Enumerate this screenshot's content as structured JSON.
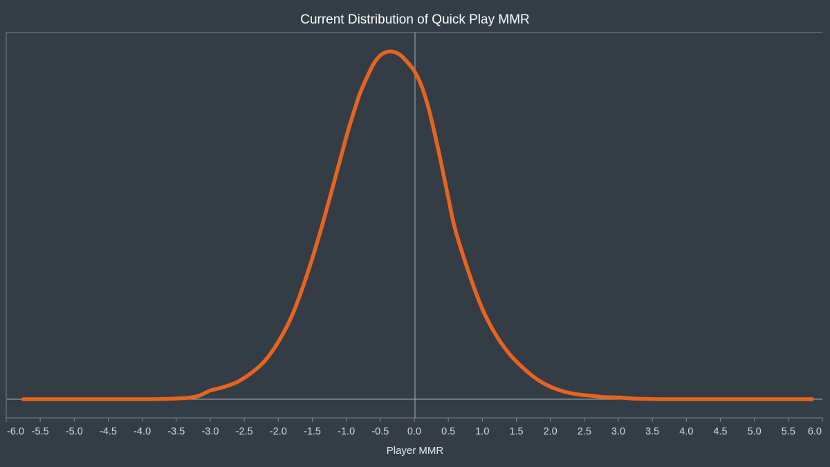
{
  "chart_data": {
    "type": "line",
    "title": "Current Distribution of Quick Play MMR",
    "xlabel": "Player MMR",
    "ylabel": "",
    "xlim": [
      -6.0,
      6.0
    ],
    "ylim": [
      0.0,
      1.0
    ],
    "y_axis_labels_shown": false,
    "x_ticks": [
      "-6.0",
      "-5.5",
      "-5.0",
      "-4.5",
      "-4.0",
      "-3.5",
      "-3.0",
      "-2.5",
      "-2.0",
      "-1.5",
      "-1.0",
      "-0.5",
      "0.0",
      "0.5",
      "1.0",
      "1.5",
      "2.0",
      "2.5",
      "3.0",
      "3.5",
      "4.0",
      "4.5",
      "5.0",
      "5.5",
      "6.0"
    ],
    "grid": false,
    "legend": "none",
    "line_color": "#e8641e",
    "background": "#343c46",
    "series": [
      {
        "x": [
          -5.75,
          -4.0,
          -3.5,
          -3.2,
          -3.0,
          -2.8,
          -2.6,
          -2.4,
          -2.2,
          -2.0,
          -1.8,
          -1.6,
          -1.4,
          -1.2,
          -1.0,
          -0.9,
          -0.8,
          -0.7,
          -0.6,
          -0.5,
          -0.4,
          -0.3,
          -0.2,
          -0.1,
          0.0,
          0.1,
          0.2,
          0.3,
          0.4,
          0.5,
          0.6,
          0.8,
          1.0,
          1.2,
          1.4,
          1.6,
          1.8,
          2.0,
          2.2,
          2.4,
          2.6,
          2.8,
          3.0,
          3.2,
          3.4,
          3.6,
          4.0,
          5.0,
          5.85
        ],
        "y": [
          0.0,
          0.0,
          0.002,
          0.008,
          0.025,
          0.035,
          0.05,
          0.075,
          0.11,
          0.165,
          0.24,
          0.345,
          0.47,
          0.61,
          0.755,
          0.82,
          0.88,
          0.925,
          0.965,
          0.99,
          1.0,
          1.0,
          0.99,
          0.97,
          0.945,
          0.905,
          0.845,
          0.765,
          0.675,
          0.58,
          0.49,
          0.365,
          0.26,
          0.185,
          0.13,
          0.09,
          0.058,
          0.036,
          0.022,
          0.014,
          0.01,
          0.006,
          0.005,
          0.002,
          0.001,
          0.0,
          0.0,
          0.0,
          0.0
        ]
      }
    ]
  }
}
